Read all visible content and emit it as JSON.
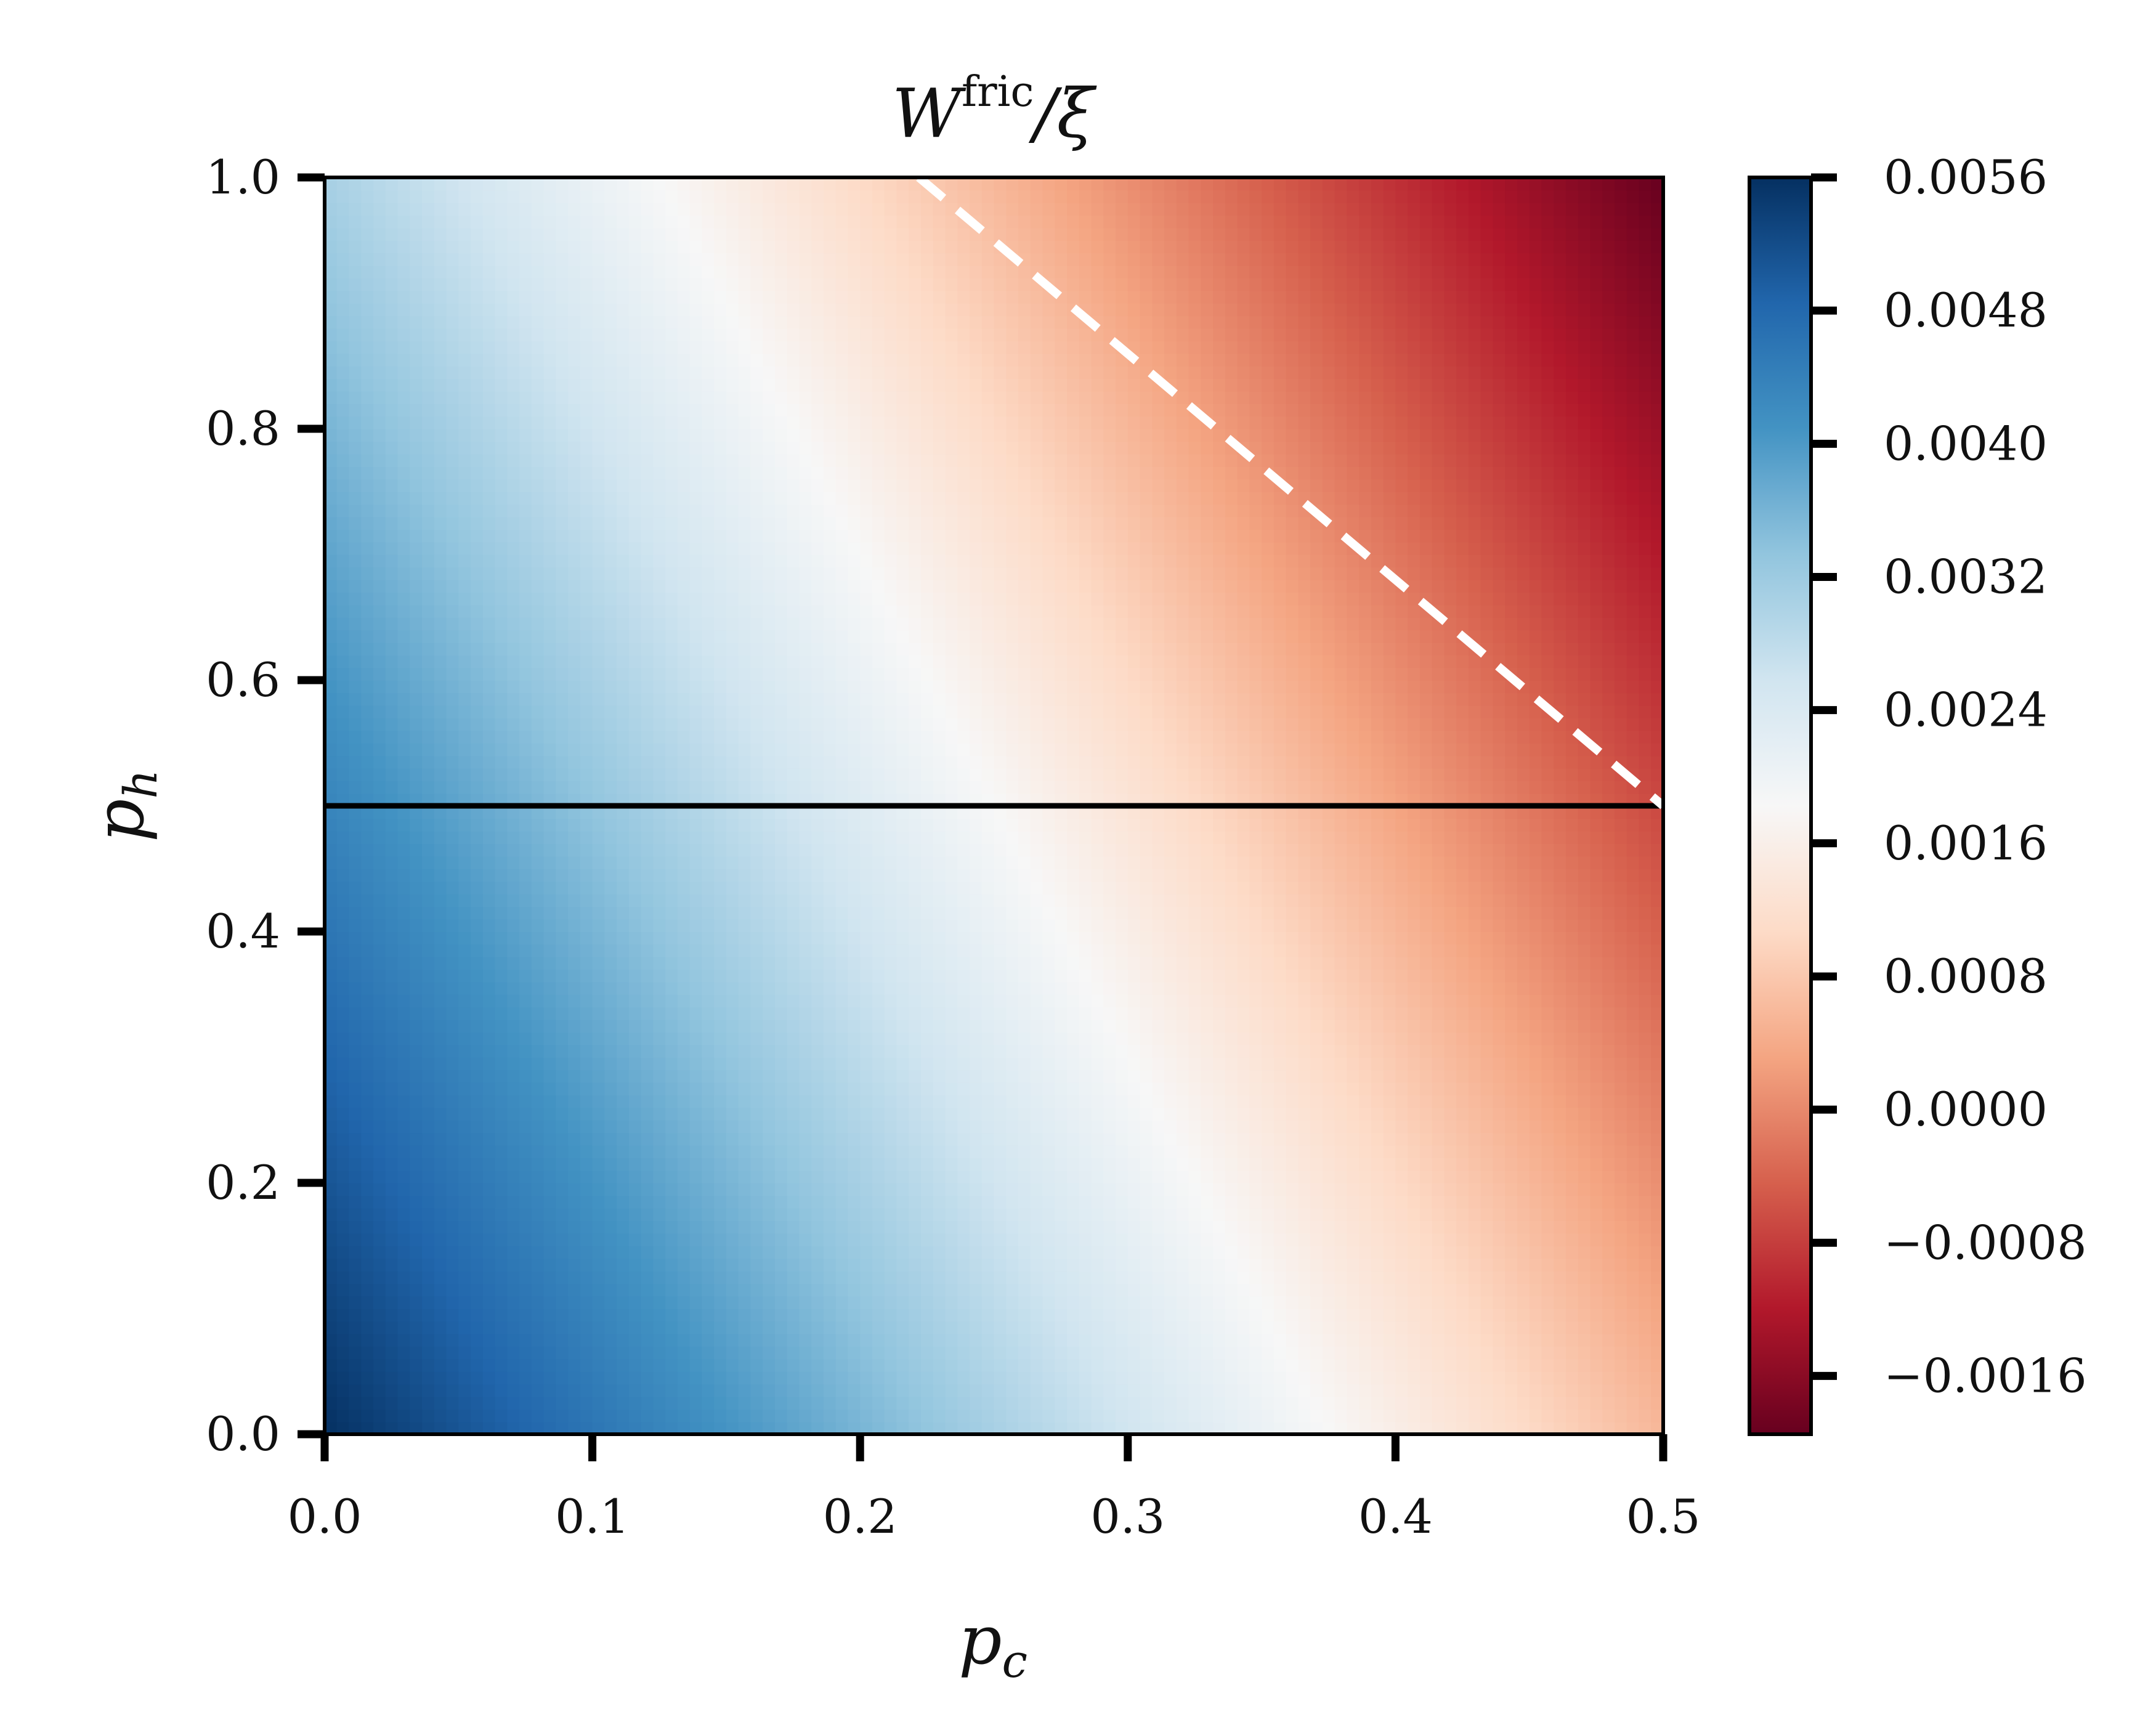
{
  "chart_data": {
    "type": "heatmap",
    "title": {
      "main": "W",
      "superscript": "fric",
      "suffix": "/ξ"
    },
    "xlabel": {
      "main": "p",
      "sub": "c"
    },
    "ylabel": {
      "main": "p",
      "sub": "h"
    },
    "xlim": [
      0.0,
      0.5
    ],
    "ylim": [
      0.0,
      1.0
    ],
    "x_ticks": [
      "0.0",
      "0.1",
      "0.2",
      "0.3",
      "0.4",
      "0.5"
    ],
    "y_ticks": [
      "0.0",
      "0.2",
      "0.4",
      "0.6",
      "0.8",
      "1.0"
    ],
    "colormap": "RdBu",
    "colorbar": {
      "range": [
        -0.00195,
        0.0056
      ],
      "ticks": [
        {
          "value": 0.0056,
          "label": "0.0056"
        },
        {
          "value": 0.0048,
          "label": "0.0048"
        },
        {
          "value": 0.004,
          "label": "0.0040"
        },
        {
          "value": 0.0032,
          "label": "0.0032"
        },
        {
          "value": 0.0024,
          "label": "0.0024"
        },
        {
          "value": 0.0016,
          "label": "0.0016"
        },
        {
          "value": 0.0008,
          "label": "0.0008"
        },
        {
          "value": 0.0,
          "label": "0.0000"
        },
        {
          "value": -0.0008,
          "label": "−0.0008"
        },
        {
          "value": -0.0016,
          "label": "−0.0016"
        }
      ]
    },
    "field": {
      "form": "linear",
      "samples": [
        {
          "pc": 0.0,
          "ph": 0.0,
          "value": 0.0056
        },
        {
          "pc": 0.5,
          "ph": 1.0,
          "value": -0.00195
        },
        {
          "pc": 0.25,
          "ph": 0.5,
          "value": 0.0018
        }
      ]
    },
    "overlay_lines": [
      {
        "style": "solid",
        "color": "#000000",
        "points": [
          [
            0.0,
            0.5
          ],
          [
            0.5,
            0.5
          ]
        ]
      },
      {
        "style": "dashed",
        "color": "#ffffff",
        "points": [
          [
            0.222,
            1.0
          ],
          [
            0.5,
            0.5
          ]
        ]
      }
    ]
  }
}
